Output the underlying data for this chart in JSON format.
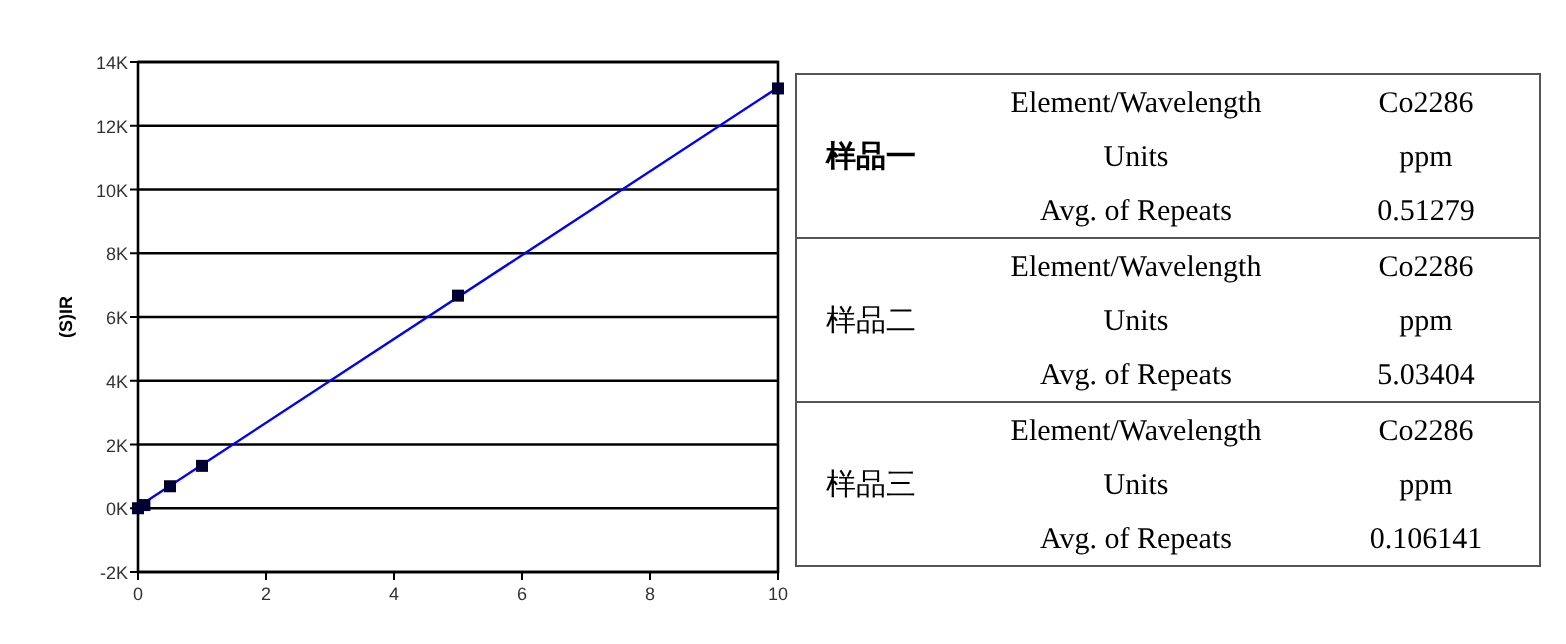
{
  "chart_data": [
    {
      "type": "scatter",
      "ylabel": "(S)IR",
      "xlim": [
        0,
        10
      ],
      "ylim": [
        -2000,
        14000
      ],
      "xticks": [
        0,
        2,
        4,
        6,
        8,
        10
      ],
      "yticks": [
        {
          "value": -2000,
          "label": "-2K"
        },
        {
          "value": 0,
          "label": "0K"
        },
        {
          "value": 2000,
          "label": "2K"
        },
        {
          "value": 4000,
          "label": "4K"
        },
        {
          "value": 6000,
          "label": "6K"
        },
        {
          "value": 8000,
          "label": "8K"
        },
        {
          "value": 10000,
          "label": "10K"
        },
        {
          "value": 12000,
          "label": "12K"
        },
        {
          "value": 14000,
          "label": "14K"
        }
      ],
      "grid": "y",
      "series": [
        {
          "type": "line",
          "color": "#0000ff",
          "x": [
            0,
            10
          ],
          "values": [
            50,
            13200
          ],
          "marker": "none"
        },
        {
          "type": "scatter",
          "color": "#000033",
          "x": [
            0,
            0.1,
            0.5,
            1,
            5,
            10
          ],
          "values": [
            0,
            100,
            690,
            1330,
            6670,
            13170
          ],
          "marker": "square"
        }
      ]
    },
    {
      "type": "other",
      "annotations": [
        "样品一",
        "Element/Wavelength",
        "Co2286",
        "Units",
        "ppm",
        "Avg. of Repeats",
        "0.51279",
        "样品二",
        "Element/Wavelength",
        "Co2286",
        "Units",
        "ppm",
        "Avg. of Repeats",
        "5.03404",
        "样品三",
        "Element/Wavelength",
        "Co2286",
        "Units",
        "ppm",
        "Avg. of Repeats",
        "0.106141"
      ]
    }
  ]
}
